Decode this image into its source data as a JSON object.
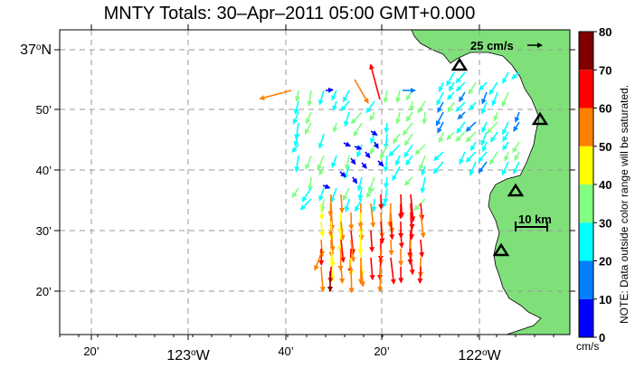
{
  "title": "MNTY Totals: 30–Apr–2011 05:00 GMT+0.000",
  "scale_arrow_label": "25 cm/s",
  "scale_bar_label": "10 km",
  "colorbar": {
    "ticks": [
      "0",
      "10",
      "20",
      "30",
      "40",
      "50",
      "60",
      "70",
      "80"
    ],
    "unit": "cm/s",
    "note": "NOTE: Data outside color range will be saturated.",
    "colors": [
      "#0000ff",
      "#0080ff",
      "#00ffff",
      "#80ff80",
      "#ffff00",
      "#ff8000",
      "#ff0000",
      "#800000"
    ]
  },
  "x_ticks": [
    {
      "label": "20’",
      "major": false
    },
    {
      "label": "123",
      "major": true,
      "suffix": "W"
    },
    {
      "label": "40’",
      "major": false
    },
    {
      "label": "20’",
      "major": false
    },
    {
      "label": "122",
      "major": true,
      "suffix": "W"
    }
  ],
  "y_ticks": [
    {
      "label": "37",
      "major": true,
      "suffix": "N"
    },
    {
      "label": "50’",
      "major": false
    },
    {
      "label": "40’",
      "major": false
    },
    {
      "label": "30’",
      "major": false
    },
    {
      "label": "20’",
      "major": false
    }
  ],
  "colors": {
    "land": "#7fe07a",
    "grid": "#999999"
  }
}
